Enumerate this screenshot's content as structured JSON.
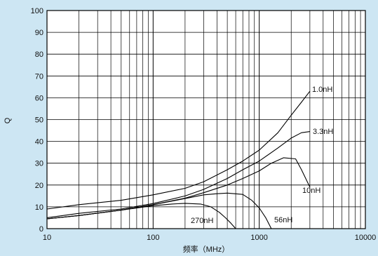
{
  "chart_data": {
    "type": "line",
    "xlabel": "频率（MHz）",
    "ylabel": "Q",
    "x_scale": "log",
    "xlim": [
      10,
      10000
    ],
    "ylim": [
      0,
      100
    ],
    "grid": true,
    "x_ticks": [
      "10",
      "100",
      "1000",
      "10000"
    ],
    "y_ticks": [
      "0",
      "10",
      "20",
      "30",
      "40",
      "50",
      "60",
      "70",
      "80",
      "90",
      "100"
    ],
    "series": [
      {
        "name": "1.0nH",
        "x": [
          10,
          20,
          50,
          100,
          200,
          300,
          500,
          700,
          1000,
          1500,
          2000,
          2500,
          3000
        ],
        "y": [
          9,
          11,
          13,
          15.5,
          18.5,
          21.5,
          27,
          31,
          36,
          44,
          52,
          58,
          63
        ]
      },
      {
        "name": "3.3nH",
        "x": [
          10,
          20,
          50,
          100,
          200,
          300,
          500,
          700,
          1000,
          1500,
          2000,
          2500,
          3000
        ],
        "y": [
          5,
          7,
          9,
          11.5,
          15,
          18,
          23,
          27,
          31,
          37,
          41.5,
          44,
          44.5
        ]
      },
      {
        "name": "10nH",
        "x": [
          10,
          20,
          50,
          100,
          200,
          300,
          500,
          700,
          1000,
          1300,
          1700,
          2200,
          2500,
          3000
        ],
        "y": [
          4.5,
          6,
          8.5,
          11,
          14,
          16.5,
          20,
          23,
          26.5,
          30,
          32.5,
          32,
          27,
          19
        ]
      },
      {
        "name": "56nH",
        "x": [
          10,
          20,
          50,
          100,
          200,
          300,
          400,
          500,
          700,
          850,
          1000,
          1150,
          1300
        ],
        "y": [
          4.5,
          6,
          8.5,
          11,
          13.8,
          15.5,
          16,
          16.3,
          15.7,
          13,
          9.5,
          5,
          0
        ]
      },
      {
        "name": "270nH",
        "x": [
          10,
          20,
          50,
          100,
          150,
          200,
          280,
          350,
          420,
          480,
          540,
          600
        ],
        "y": [
          4.5,
          6,
          8.5,
          10.5,
          11.3,
          11.6,
          11.3,
          10,
          7.5,
          5,
          2.5,
          0
        ]
      }
    ]
  },
  "labels": {
    "s1": "1.0nH",
    "s2": "3.3nH",
    "s3": "10nH",
    "s4": "56nH",
    "s5": "270nH"
  }
}
